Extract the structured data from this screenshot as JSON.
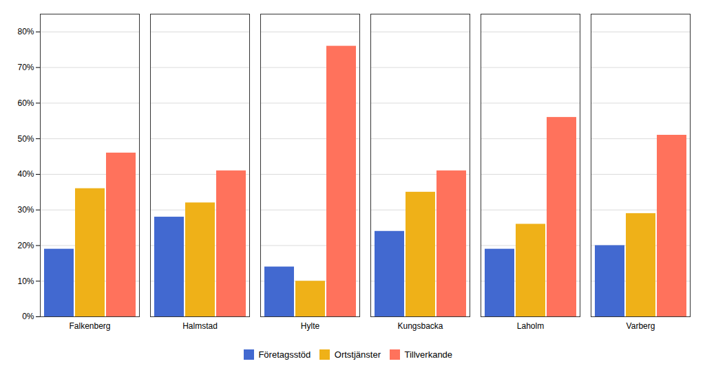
{
  "chart_data": {
    "type": "bar",
    "categories": [
      "Falkenberg",
      "Halmstad",
      "Hylte",
      "Kungsbacka",
      "Laholm",
      "Varberg"
    ],
    "series": [
      {
        "name": "Företagsstöd",
        "values": [
          0.19,
          0.28,
          0.14,
          0.24,
          0.19,
          0.2
        ]
      },
      {
        "name": "Ortstjänster",
        "values": [
          0.36,
          0.32,
          0.1,
          0.35,
          0.26,
          0.29
        ]
      },
      {
        "name": "Tillverkande",
        "values": [
          0.46,
          0.41,
          0.76,
          0.41,
          0.56,
          0.51
        ]
      }
    ],
    "ylim": [
      0,
      0.85
    ],
    "yticks": [
      {
        "value": 0.0,
        "label": "0%"
      },
      {
        "value": 0.1,
        "label": "10%"
      },
      {
        "value": 0.2,
        "label": "20%"
      },
      {
        "value": 0.3,
        "label": "30%"
      },
      {
        "value": 0.4,
        "label": "40%"
      },
      {
        "value": 0.5,
        "label": "50%"
      },
      {
        "value": 0.6,
        "label": "60%"
      },
      {
        "value": 0.7,
        "label": "70%"
      },
      {
        "value": 0.8,
        "label": "80%"
      }
    ],
    "grid": true,
    "legend": "bottom"
  }
}
